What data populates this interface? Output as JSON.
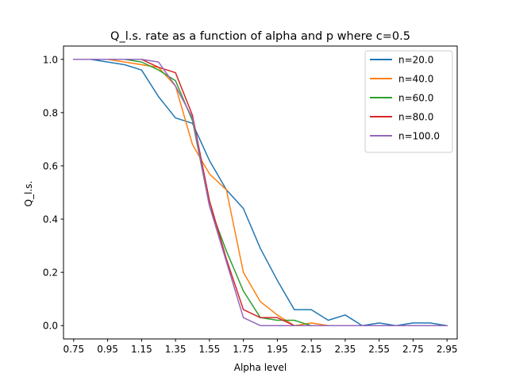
{
  "chart_data": {
    "type": "line",
    "title": "Q_l.s. rate as a function of alpha and p where c=0.5",
    "xlabel": "Alpha level",
    "ylabel": "Q_l.s.",
    "xlim": [
      0.69,
      3.01
    ],
    "ylim": [
      -0.05,
      1.05
    ],
    "x": [
      0.75,
      0.85,
      0.95,
      1.05,
      1.15,
      1.25,
      1.35,
      1.45,
      1.55,
      1.65,
      1.75,
      1.85,
      1.95,
      2.05,
      2.15,
      2.25,
      2.35,
      2.45,
      2.55,
      2.65,
      2.75,
      2.85,
      2.95
    ],
    "xticks": [
      0.75,
      0.95,
      1.15,
      1.35,
      1.55,
      1.75,
      1.95,
      2.15,
      2.35,
      2.55,
      2.75,
      2.95
    ],
    "xtick_labels": [
      "0.75",
      "0.95",
      "1.15",
      "1.35",
      "1.55",
      "1.75",
      "1.95",
      "2.15",
      "2.35",
      "2.55",
      "2.75",
      "2.95"
    ],
    "yticks": [
      0.0,
      0.2,
      0.4,
      0.6,
      0.8,
      1.0
    ],
    "ytick_labels": [
      "0.0",
      "0.2",
      "0.4",
      "0.6",
      "0.8",
      "1.0"
    ],
    "grid": false,
    "legend_position": "top-right",
    "series": [
      {
        "name": "n=20.0",
        "color": "#1f77b4",
        "values": [
          1.0,
          1.0,
          0.99,
          0.98,
          0.96,
          0.86,
          0.78,
          0.76,
          0.62,
          0.51,
          0.44,
          0.29,
          0.17,
          0.06,
          0.06,
          0.02,
          0.04,
          0.0,
          0.01,
          0.0,
          0.01,
          0.01,
          0.0
        ]
      },
      {
        "name": "n=40.0",
        "color": "#ff7f0e",
        "values": [
          1.0,
          1.0,
          1.0,
          0.99,
          0.98,
          0.97,
          0.9,
          0.68,
          0.57,
          0.51,
          0.2,
          0.09,
          0.04,
          0.0,
          0.01,
          0.0,
          0.0,
          0.0,
          0.0,
          0.0,
          0.0,
          0.0,
          0.0
        ]
      },
      {
        "name": "n=60.0",
        "color": "#2ca02c",
        "values": [
          1.0,
          1.0,
          1.0,
          1.0,
          0.99,
          0.96,
          0.92,
          0.77,
          0.45,
          0.28,
          0.13,
          0.03,
          0.02,
          0.02,
          0.0,
          0.0,
          0.0,
          0.0,
          0.0,
          0.0,
          0.0,
          0.0,
          0.0
        ]
      },
      {
        "name": "n=80.0",
        "color": "#d62728",
        "values": [
          1.0,
          1.0,
          1.0,
          1.0,
          1.0,
          0.97,
          0.95,
          0.79,
          0.47,
          0.25,
          0.06,
          0.03,
          0.03,
          0.0,
          0.0,
          0.0,
          0.0,
          0.0,
          0.0,
          0.0,
          0.0,
          0.0,
          0.0
        ]
      },
      {
        "name": "n=100.0",
        "color": "#9467bd",
        "values": [
          1.0,
          1.0,
          1.0,
          1.0,
          1.0,
          0.99,
          0.9,
          0.78,
          0.45,
          0.24,
          0.03,
          0.0,
          0.0,
          0.0,
          0.0,
          0.0,
          0.0,
          0.0,
          0.0,
          0.0,
          0.0,
          0.0,
          0.0
        ]
      }
    ]
  }
}
